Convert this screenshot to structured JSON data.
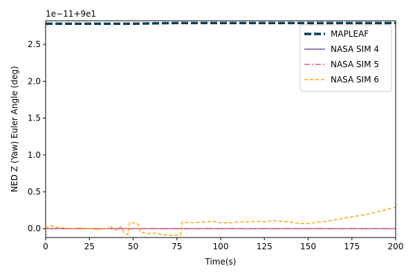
{
  "chart_data": {
    "type": "line",
    "xlabel": "Time(s)",
    "ylabel": "NED Z (Yaw) Euler Angle (deg)",
    "offset_text": "1e−11+9e1",
    "xlim": [
      0,
      200
    ],
    "ylim": [
      -0.12,
      2.82
    ],
    "x_ticks": [
      0,
      25,
      50,
      75,
      100,
      125,
      150,
      175,
      200
    ],
    "y_ticks": [
      0.0,
      0.5,
      1.0,
      1.5,
      2.0,
      2.5
    ],
    "y_tick_labels": [
      "0.0",
      "0.5",
      "1.0",
      "1.5",
      "2.0",
      "2.5"
    ],
    "grid": false,
    "legend_position": "top-right",
    "series": [
      {
        "name": "MAPLEAF",
        "color": "#003f5c",
        "style": "dashed-thick",
        "x": [
          0,
          25,
          50,
          75,
          100,
          125,
          150,
          175,
          200
        ],
        "y": [
          2.78,
          2.78,
          2.78,
          2.79,
          2.79,
          2.79,
          2.79,
          2.79,
          2.79
        ]
      },
      {
        "name": "NASA SIM 4",
        "color": "#7a5195",
        "style": "solid",
        "x": [
          0,
          50,
          100,
          150,
          200
        ],
        "y": [
          0.0,
          0.0,
          0.0,
          0.0,
          0.0
        ]
      },
      {
        "name": "NASA SIM 5",
        "color": "#ef5675",
        "style": "dashdot",
        "x": [
          0,
          50,
          100,
          150,
          200
        ],
        "y": [
          0.0,
          0.0,
          0.0,
          0.0,
          0.0
        ]
      },
      {
        "name": "NASA SIM 6",
        "color": "#ffa600",
        "style": "dashed",
        "x": [
          0,
          3,
          6,
          10,
          15,
          20,
          25,
          30,
          35,
          37,
          40,
          43,
          45,
          47,
          48,
          50,
          53,
          54,
          58,
          62,
          67,
          72,
          77,
          78,
          85,
          90,
          95,
          100,
          105,
          110,
          115,
          120,
          125,
          130,
          135,
          140,
          145,
          150,
          155,
          160,
          165,
          170,
          175,
          180,
          185,
          190,
          195,
          200
        ],
        "y": [
          0.0,
          0.04,
          0.02,
          0.01,
          0.0,
          0.01,
          0.0,
          -0.01,
          0.0,
          0.03,
          -0.02,
          0.03,
          -0.06,
          -0.08,
          0.09,
          0.08,
          0.06,
          -0.04,
          -0.07,
          -0.06,
          -0.08,
          -0.09,
          -0.09,
          0.09,
          0.08,
          0.09,
          0.1,
          0.08,
          0.08,
          0.09,
          0.09,
          0.1,
          0.09,
          0.11,
          0.1,
          0.09,
          0.07,
          0.07,
          0.09,
          0.1,
          0.12,
          0.14,
          0.16,
          0.18,
          0.2,
          0.23,
          0.26,
          0.29
        ]
      }
    ]
  }
}
